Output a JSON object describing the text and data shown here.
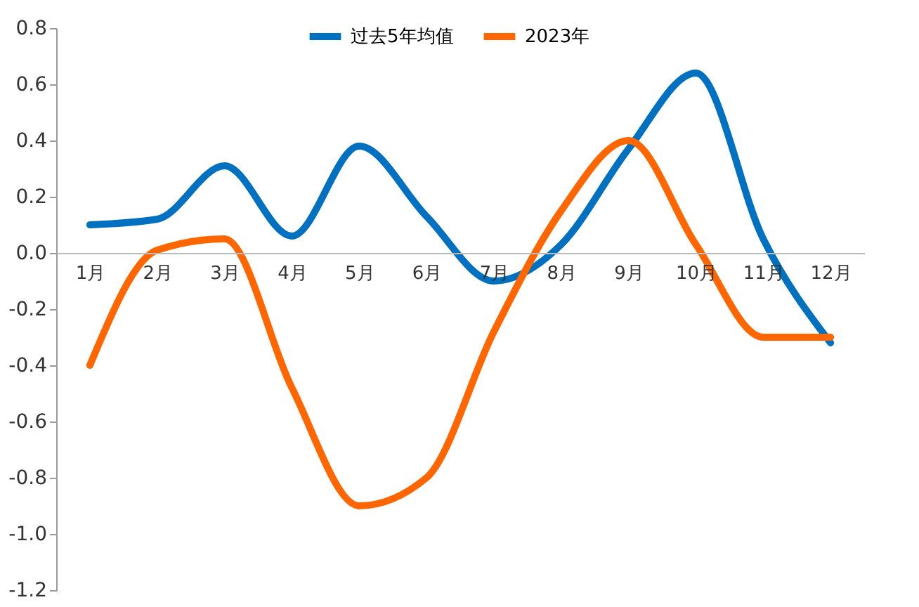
{
  "chart_data": {
    "type": "line",
    "categories": [
      "1月",
      "2月",
      "3月",
      "4月",
      "5月",
      "6月",
      "7月",
      "8月",
      "9月",
      "10月",
      "11月",
      "12月"
    ],
    "series": [
      {
        "name": "过去5年均值",
        "color": "#0070c0",
        "values": [
          0.1,
          0.12,
          0.31,
          0.06,
          0.38,
          0.13,
          -0.1,
          0.03,
          0.37,
          0.64,
          0.05,
          -0.32
        ]
      },
      {
        "name": "2023年",
        "color": "#ff6600",
        "values": [
          -0.4,
          0.01,
          0.05,
          -0.48,
          -0.9,
          -0.8,
          -0.28,
          0.15,
          0.4,
          0.03,
          -0.3,
          -0.3
        ]
      }
    ],
    "ylim": [
      -1.2,
      0.8
    ],
    "yticks": [
      {
        "value": -1.2,
        "label": "-1.2"
      },
      {
        "value": -1.0,
        "label": "-1.0"
      },
      {
        "value": -0.8,
        "label": "-0.8"
      },
      {
        "value": -0.6,
        "label": "-0.6"
      },
      {
        "value": -0.4,
        "label": "-0.4"
      },
      {
        "value": -0.2,
        "label": "-0.2"
      },
      {
        "value": 0,
        "label": "0.0"
      },
      {
        "value": 0.2,
        "label": "0.2"
      },
      {
        "value": 0.4,
        "label": "0.4"
      },
      {
        "value": 0.6,
        "label": "0.6"
      },
      {
        "value": 0.8,
        "label": "0.8"
      }
    ],
    "grid": false,
    "legend": "top",
    "marker": "none",
    "line_style": "solid"
  }
}
